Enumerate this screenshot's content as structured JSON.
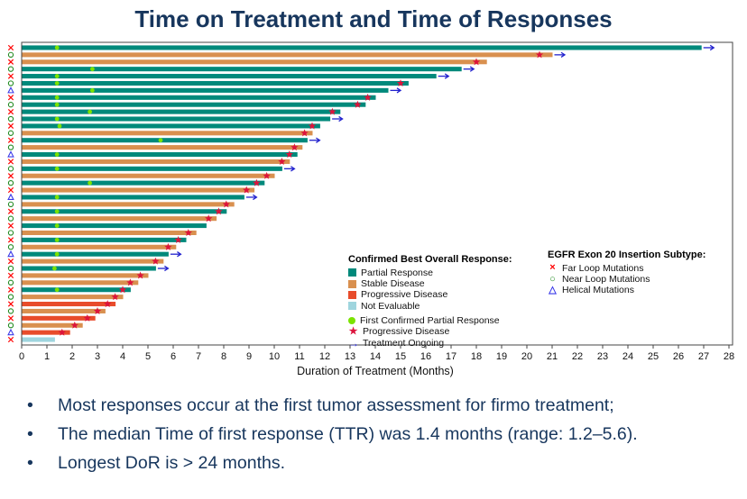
{
  "title": "Time on Treatment and Time of Responses",
  "chart_data": {
    "type": "bar",
    "subtype": "swimmer-plot",
    "xlabel": "Duration of Treatment (Months)",
    "xlim": [
      0,
      28
    ],
    "xticks": [
      0,
      1,
      2,
      3,
      4,
      5,
      6,
      7,
      8,
      9,
      10,
      11,
      12,
      13,
      14,
      15,
      16,
      17,
      18,
      19,
      20,
      21,
      22,
      23,
      24,
      25,
      26,
      27,
      28
    ],
    "response_colors": {
      "PR": "#00897B",
      "SD": "#D9904F",
      "PD": "#E84C2B",
      "NE": "#9FD5DE"
    },
    "marker_colors": {
      "first_response": "#7BE300",
      "progression": "#DC143C",
      "ongoing": "#2222CE"
    },
    "mutation_colors": {
      "far": "#FF0000",
      "near": "#228B22",
      "helical": "#3A3AE8"
    },
    "patients": [
      {
        "d": 26.9,
        "r": "PR",
        "m": "far",
        "go": true,
        "fr": 1.4
      },
      {
        "d": 21.0,
        "r": "SD",
        "m": "near",
        "go": true,
        "pd": 20.5
      },
      {
        "d": 18.4,
        "r": "SD",
        "m": "far",
        "pd": 18.0
      },
      {
        "d": 17.4,
        "r": "PR",
        "m": "near",
        "go": true,
        "fr": 2.8
      },
      {
        "d": 16.4,
        "r": "PR",
        "m": "far",
        "go": true,
        "fr": 1.4
      },
      {
        "d": 15.3,
        "r": "PR",
        "m": "near",
        "fr": 1.4,
        "pd": 15.0
      },
      {
        "d": 14.5,
        "r": "PR",
        "m": "helical",
        "go": true,
        "fr": 2.8
      },
      {
        "d": 14.0,
        "r": "PR",
        "m": "far",
        "fr": 1.4,
        "pd": 13.7
      },
      {
        "d": 13.6,
        "r": "PR",
        "m": "near",
        "fr": 1.4,
        "pd": 13.3
      },
      {
        "d": 12.6,
        "r": "PR",
        "m": "far",
        "fr": 2.7,
        "pd": 12.3
      },
      {
        "d": 12.2,
        "r": "PR",
        "m": "near",
        "go": true,
        "fr": 1.4
      },
      {
        "d": 11.8,
        "r": "PR",
        "m": "far",
        "fr": 1.5,
        "pd": 11.5
      },
      {
        "d": 11.5,
        "r": "SD",
        "m": "near",
        "pd": 11.2
      },
      {
        "d": 11.3,
        "r": "PR",
        "m": "far",
        "go": true,
        "fr": 5.5
      },
      {
        "d": 11.1,
        "r": "SD",
        "m": "near",
        "pd": 10.8
      },
      {
        "d": 10.9,
        "r": "PR",
        "m": "helical",
        "fr": 1.4,
        "pd": 10.6
      },
      {
        "d": 10.6,
        "r": "SD",
        "m": "far",
        "pd": 10.3
      },
      {
        "d": 10.3,
        "r": "PR",
        "m": "near",
        "go": true,
        "fr": 1.4
      },
      {
        "d": 10.0,
        "r": "SD",
        "m": "far",
        "pd": 9.7
      },
      {
        "d": 9.6,
        "r": "PR",
        "m": "near",
        "fr": 2.7,
        "pd": 9.3
      },
      {
        "d": 9.2,
        "r": "SD",
        "m": "far",
        "pd": 8.9
      },
      {
        "d": 8.8,
        "r": "PR",
        "m": "helical",
        "go": true,
        "fr": 1.4
      },
      {
        "d": 8.4,
        "r": "SD",
        "m": "near",
        "pd": 8.1
      },
      {
        "d": 8.1,
        "r": "PR",
        "m": "far",
        "fr": 1.4,
        "pd": 7.8
      },
      {
        "d": 7.7,
        "r": "SD",
        "m": "near",
        "pd": 7.4
      },
      {
        "d": 7.3,
        "r": "PR",
        "m": "far",
        "fr": 1.4
      },
      {
        "d": 6.9,
        "r": "SD",
        "m": "near",
        "pd": 6.6
      },
      {
        "d": 6.5,
        "r": "PR",
        "m": "far",
        "fr": 1.4,
        "pd": 6.2
      },
      {
        "d": 6.1,
        "r": "SD",
        "m": "near",
        "pd": 5.8
      },
      {
        "d": 5.8,
        "r": "PR",
        "m": "helical",
        "go": true,
        "fr": 1.4
      },
      {
        "d": 5.6,
        "r": "SD",
        "m": "far",
        "pd": 5.3
      },
      {
        "d": 5.3,
        "r": "PR",
        "m": "near",
        "go": true,
        "fr": 1.3
      },
      {
        "d": 5.0,
        "r": "SD",
        "m": "far",
        "pd": 4.7
      },
      {
        "d": 4.6,
        "r": "SD",
        "m": "near",
        "pd": 4.3
      },
      {
        "d": 4.3,
        "r": "PR",
        "m": "far",
        "fr": 1.4,
        "pd": 4.0
      },
      {
        "d": 4.0,
        "r": "SD",
        "m": "near",
        "pd": 3.7
      },
      {
        "d": 3.7,
        "r": "PD",
        "m": "far",
        "pd": 3.4
      },
      {
        "d": 3.3,
        "r": "SD",
        "m": "near",
        "pd": 3.0
      },
      {
        "d": 2.9,
        "r": "PD",
        "m": "far",
        "pd": 2.6
      },
      {
        "d": 2.4,
        "r": "SD",
        "m": "near",
        "pd": 2.1
      },
      {
        "d": 1.9,
        "r": "PD",
        "m": "helical",
        "pd": 1.6
      },
      {
        "d": 1.3,
        "r": "NE",
        "m": "far"
      }
    ]
  },
  "legend_response": {
    "title": "Confirmed Best Overall Response:",
    "items": [
      {
        "label": "Partial Response",
        "symbol": "square",
        "color": "#00897B"
      },
      {
        "label": "Stable Disease",
        "symbol": "square",
        "color": "#D9904F"
      },
      {
        "label": "Progressive Disease",
        "symbol": "square",
        "color": "#E84C2B"
      },
      {
        "label": "Not Evaluable",
        "symbol": "square",
        "color": "#9FD5DE"
      }
    ],
    "marker_items": [
      {
        "label": "First Confirmed Partial Response",
        "symbol": "dot",
        "color": "#7BE300"
      },
      {
        "label": "Progressive Disease",
        "symbol": "star",
        "color": "#DC143C"
      },
      {
        "label": "Treatment Ongoing",
        "symbol": "arrow",
        "color": "#2222CE"
      }
    ]
  },
  "legend_mutation": {
    "title": "EGFR Exon 20 Insertion Subtype:",
    "items": [
      {
        "label": "Far Loop Mutations",
        "symbol": "cross",
        "color": "#FF0000"
      },
      {
        "label": "Near Loop Mutations",
        "symbol": "circle",
        "color": "#228B22"
      },
      {
        "label": "Helical Mutations",
        "symbol": "triangle",
        "color": "#3A3AE8"
      }
    ]
  },
  "bullets": [
    "Most responses occur at the first tumor assessment for firmo treatment;",
    "The median Time of first response (TTR) was 1.4 months (range: 1.2–5.6).",
    "Longest DoR is > 24 months."
  ]
}
